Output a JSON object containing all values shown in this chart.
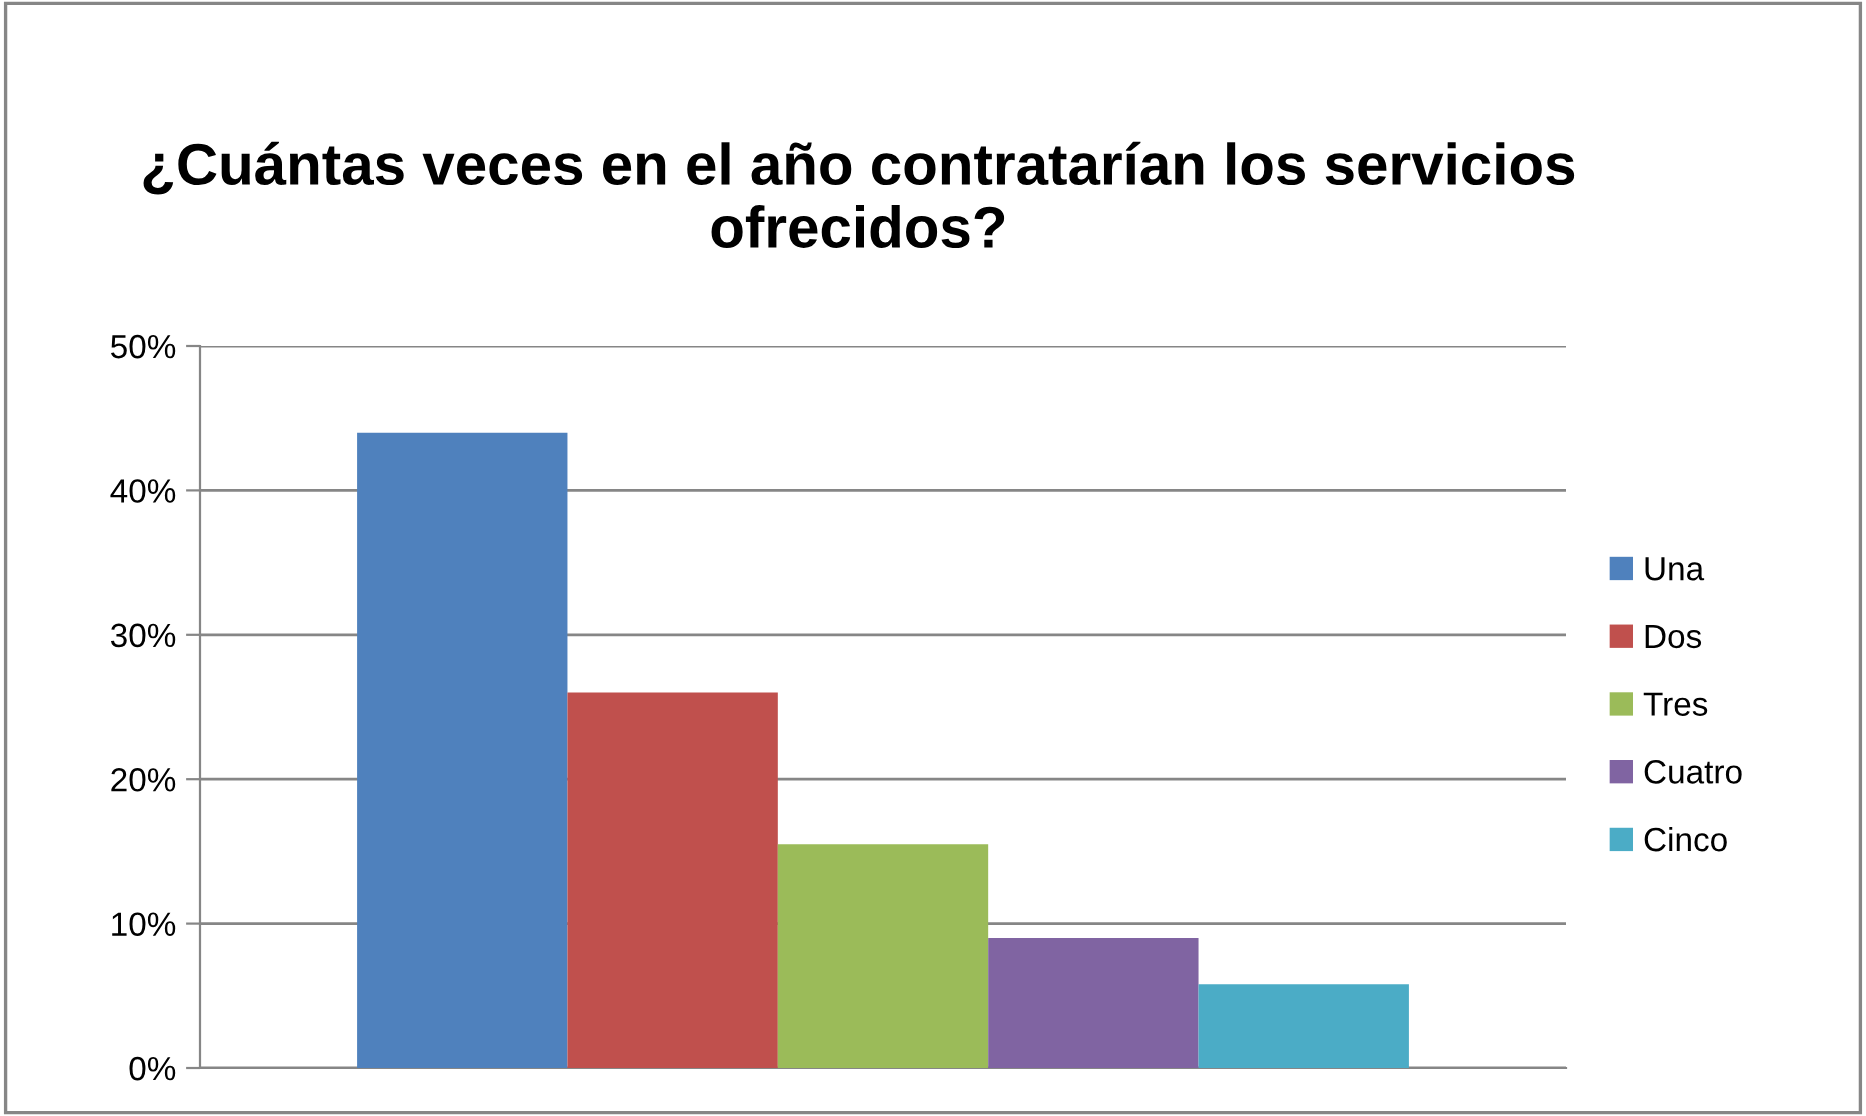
{
  "chart_data": {
    "type": "bar",
    "title": "¿Cuántas veces en el año contratarían los servicios ofrecidos?",
    "categories": [
      null
    ],
    "series": [
      {
        "name": "Una",
        "color": "#4f81bd",
        "values": [
          44
        ]
      },
      {
        "name": "Dos",
        "color": "#c0504d",
        "values": [
          26
        ]
      },
      {
        "name": "Tres",
        "color": "#9bbb59",
        "values": [
          15.5
        ]
      },
      {
        "name": "Cuatro",
        "color": "#8064a2",
        "values": [
          9
        ]
      },
      {
        "name": "Cinco",
        "color": "#4bacc6",
        "values": [
          5.8
        ]
      }
    ],
    "ylim": [
      0,
      50
    ],
    "yticks": [
      {
        "value": 0,
        "label": "0%"
      },
      {
        "value": 10,
        "label": "10%"
      },
      {
        "value": 20,
        "label": "20%"
      },
      {
        "value": 30,
        "label": "30%"
      },
      {
        "value": 40,
        "label": "40%"
      },
      {
        "value": 50,
        "label": "50%"
      }
    ],
    "grid": "y",
    "legend": "right"
  }
}
